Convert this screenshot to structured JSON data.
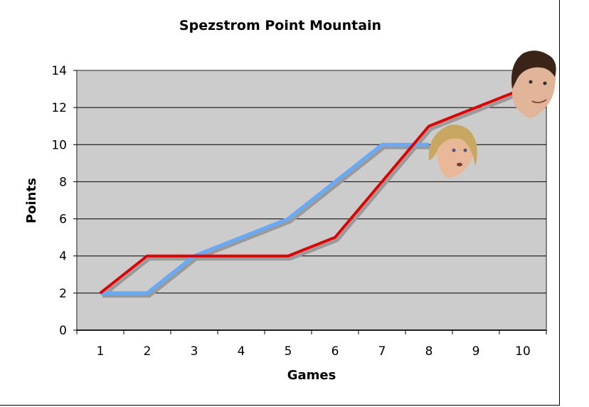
{
  "chart_data": {
    "type": "line",
    "title": "Spezstrom Point Mountain",
    "xlabel": "Games",
    "ylabel": "Points",
    "categories": [
      "1",
      "2",
      "3",
      "4",
      "5",
      "6",
      "7",
      "8",
      "9",
      "10"
    ],
    "ylim": [
      0,
      14
    ],
    "yticks": [
      0,
      2,
      4,
      6,
      8,
      10,
      12,
      14
    ],
    "grid": true,
    "legend": "none",
    "plot_background": "#cccccc",
    "series": [
      {
        "color": "#e00000",
        "values": [
          2,
          4,
          4,
          4,
          4,
          5,
          8,
          11,
          12,
          13
        ],
        "marker": "face-dark-hair"
      },
      {
        "color": "#66aaff",
        "values": [
          2,
          2,
          4,
          5,
          6,
          8,
          10,
          10,
          null,
          null
        ],
        "marker": "face-blond-hair"
      }
    ]
  }
}
